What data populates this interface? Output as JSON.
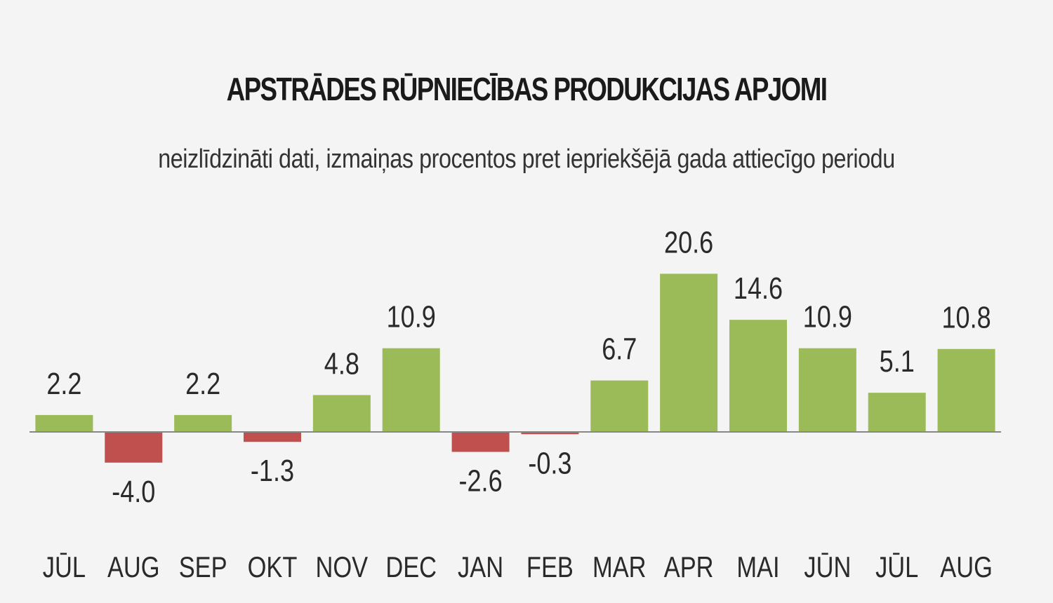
{
  "chart_data": {
    "type": "bar",
    "title": "APSTRĀDES RŪPNIECĪBAS PRODUKCIJAS APJOMI",
    "subtitle": "neizlīdzināti dati, izmaiņas procentos pret iepriekšējā gada attiecīgo periodu",
    "categories": [
      "JŪL",
      "AUG",
      "SEP",
      "OKT",
      "NOV",
      "DEC",
      "JAN",
      "FEB",
      "MAR",
      "APR",
      "MAI",
      "JŪN",
      "JŪL",
      "AUG"
    ],
    "values": [
      2.2,
      -4.0,
      2.2,
      -1.3,
      4.8,
      10.9,
      -2.6,
      -0.3,
      6.7,
      20.6,
      14.6,
      10.9,
      5.1,
      10.8
    ],
    "value_labels": [
      "2.2",
      "-4.0",
      "2.2",
      "-1.3",
      "4.8",
      "10.9",
      "-2.6",
      "-0.3",
      "6.7",
      "20.6",
      "14.6",
      "10.9",
      "5.1",
      "10.8"
    ],
    "xlabel": "",
    "ylabel": "",
    "ylim": [
      -5,
      21
    ],
    "grid": false,
    "colors": {
      "positive": "#9bbb59",
      "negative": "#c0504d",
      "axis": "#888888"
    }
  }
}
